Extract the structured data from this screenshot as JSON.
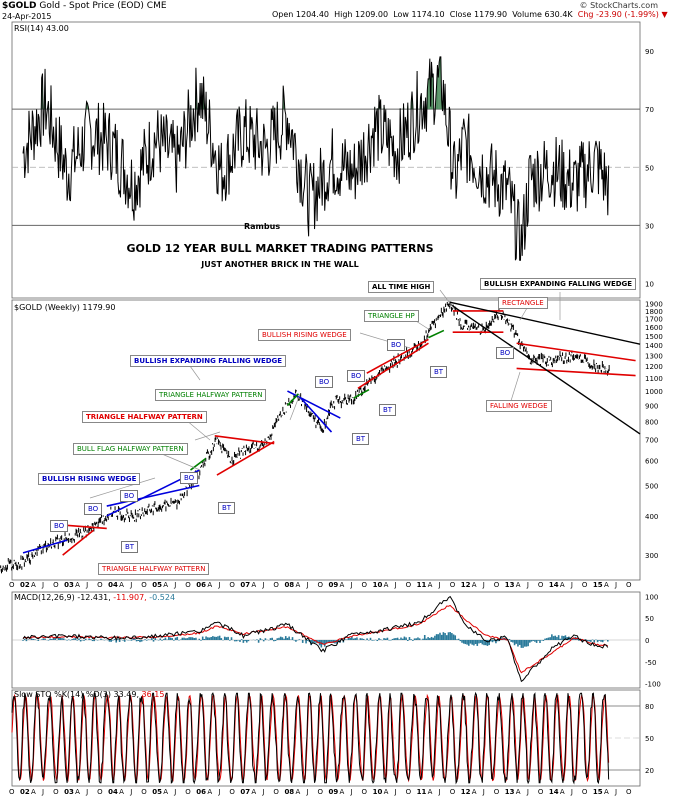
{
  "header": {
    "symbol": "$GOLD",
    "name": "Gold - Spot Price (EOD)",
    "exchange": "CME",
    "date": "24-Apr-2015",
    "open": "Open 1204.40",
    "high": "High 1209.00",
    "low": "Low 1174.10",
    "close": "Close 1179.90",
    "volume": "Volume 630.4K",
    "change": "Chg -23.90 (-1.99%)",
    "watermark": "© StockCharts.com"
  },
  "titles": {
    "main": "GOLD 12 YEAR BULL MARKET TRADING PATTERNS",
    "sub": "JUST ANOTHER BRICK IN THE WALL",
    "author": "Rambus"
  },
  "chart_data": [
    {
      "type": "line",
      "name": "rsi",
      "title": "RSI(14) 43.00",
      "ylim": [
        5,
        100
      ],
      "yticks": [
        10,
        30,
        50,
        70,
        90
      ],
      "reference_lines": [
        30,
        50,
        70
      ],
      "x": [
        2002.0,
        2002.5,
        2003.0,
        2003.5,
        2004.0,
        2004.5,
        2005.0,
        2005.5,
        2006.0,
        2006.5,
        2007.0,
        2007.5,
        2008.0,
        2008.5,
        2009.0,
        2009.5,
        2010.0,
        2010.5,
        2011.0,
        2011.5,
        2011.8,
        2012.0,
        2012.5,
        2013.0,
        2013.3,
        2013.5,
        2014.0,
        2014.5,
        2015.0,
        2015.3
      ],
      "values": [
        55,
        72,
        48,
        62,
        58,
        44,
        60,
        52,
        76,
        48,
        62,
        56,
        68,
        38,
        52,
        48,
        64,
        56,
        72,
        80,
        45,
        58,
        48,
        42,
        22,
        46,
        50,
        44,
        52,
        43
      ]
    },
    {
      "type": "line",
      "name": "price",
      "title": "$GOLD (Weekly) 1179.90",
      "scale": "log",
      "ylim": [
        250,
        1950
      ],
      "yticks": [
        300,
        400,
        500,
        600,
        700,
        800,
        900,
        1000,
        1100,
        1200,
        1300,
        1400,
        1500,
        1600,
        1700,
        1800,
        1900
      ],
      "x": [
        2001.3,
        2002.0,
        2002.5,
        2003.0,
        2003.5,
        2004.0,
        2004.5,
        2005.0,
        2005.5,
        2006.0,
        2006.4,
        2006.7,
        2007.0,
        2007.5,
        2008.0,
        2008.2,
        2008.8,
        2009.0,
        2009.5,
        2010.0,
        2010.5,
        2011.0,
        2011.67,
        2012.0,
        2012.5,
        2012.8,
        2013.0,
        2013.5,
        2014.0,
        2014.5,
        2015.0,
        2015.3
      ],
      "values": [
        270,
        285,
        320,
        340,
        360,
        410,
        400,
        425,
        440,
        550,
        700,
        600,
        640,
        680,
        900,
        980,
        740,
        920,
        950,
        1110,
        1250,
        1400,
        1900,
        1600,
        1580,
        1780,
        1670,
        1250,
        1250,
        1300,
        1200,
        1180
      ],
      "annotations": {
        "patterns": [
          "BULLISH RISING WEDGE",
          "TRIANGLE HALFWAY PATTERN",
          "BULL FLAG HALFWAY PATTERN",
          "TRIANGLE HALFWAY PATTERN",
          "TRIANGLE HALFWAY PATTERN",
          "BULLISH EXPANDING FALLING WEDGE",
          "BULLISH RISING WEDGE",
          "TRIANGLE HP",
          "ALL TIME HIGH",
          "BULLISH EXPANDING FALLING WEDGE",
          "RECTANGLE",
          "FALLING WEDGE"
        ],
        "bo": "BO",
        "bt": "BT"
      }
    },
    {
      "type": "line",
      "name": "macd",
      "title": "MACD(12,26,9)",
      "macd_value": "-12.431,",
      "signal_value": "-11.907,",
      "hist_value": "-0.524",
      "ylim": [
        -110,
        110
      ],
      "yticks": [
        -100,
        -50,
        0,
        50,
        100
      ],
      "x": [
        2002.0,
        2003.0,
        2004.0,
        2005.0,
        2006.0,
        2006.4,
        2007.0,
        2008.0,
        2008.8,
        2009.5,
        2010.0,
        2011.0,
        2011.67,
        2012.0,
        2012.5,
        2013.0,
        2013.3,
        2014.0,
        2014.5,
        2015.0,
        2015.3
      ],
      "macd": [
        5,
        10,
        4,
        8,
        20,
        40,
        10,
        35,
        -25,
        15,
        20,
        40,
        100,
        40,
        0,
        5,
        -95,
        -20,
        10,
        -15,
        -12
      ],
      "signal": [
        4,
        8,
        5,
        7,
        16,
        32,
        14,
        30,
        -10,
        10,
        18,
        36,
        80,
        50,
        10,
        0,
        -75,
        -30,
        5,
        -10,
        -12
      ]
    },
    {
      "type": "line",
      "name": "sto",
      "title": "Slow STO %K(14) %D(3)",
      "k_value": "33.49,",
      "d_value": "36.15",
      "ylim": [
        5,
        95
      ],
      "yticks": [
        20,
        50,
        80
      ],
      "reference_lines": [
        20,
        80
      ]
    }
  ],
  "xaxis": {
    "labels": [
      "O",
      "02",
      "A",
      "J",
      "O",
      "03",
      "A",
      "J",
      "O",
      "04",
      "A",
      "J",
      "O",
      "05",
      "A",
      "J",
      "O",
      "06",
      "A",
      "J",
      "O",
      "07",
      "A",
      "J",
      "O",
      "08",
      "A",
      "J",
      "O",
      "09",
      "A",
      "J",
      "O",
      "10",
      "A",
      "J",
      "O",
      "11",
      "A",
      "J",
      "O",
      "12",
      "A",
      "J",
      "O",
      "13",
      "A",
      "J",
      "O",
      "14",
      "A",
      "J",
      "O",
      "15",
      "A",
      "J",
      "O"
    ],
    "start_year": 2001.75,
    "step_years": 0.25
  },
  "colors": {
    "price": "#000000",
    "red_line": "#e00000",
    "blue_line": "#0000dd",
    "green_line": "#008000",
    "macd_signal": "#e00000",
    "hist": "#2a7a9a",
    "rsi_fill": "#4a8a5a",
    "grid": "#999999"
  }
}
